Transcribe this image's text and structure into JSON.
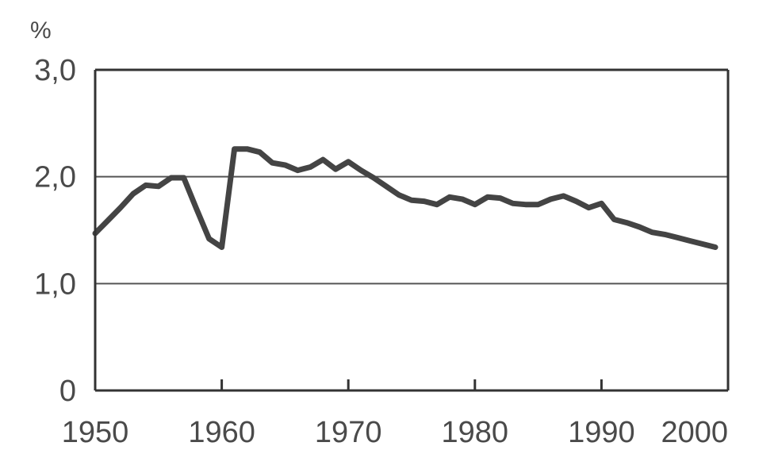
{
  "chart_data": {
    "type": "line",
    "title": "",
    "xlabel": "",
    "ylabel": "%",
    "xlim": [
      1950,
      2000
    ],
    "ylim": [
      0,
      3
    ],
    "grid": "horizontal at 1,0 and 2,0",
    "x_ticks": [
      "1950",
      "1960",
      "1970",
      "1980",
      "1990",
      "2000"
    ],
    "y_ticks": [
      "0",
      "1,0",
      "2,0",
      "3,0"
    ],
    "colors": {
      "line": "#444444",
      "frame": "#333333",
      "grid": "#555555",
      "text": "#4a4a4a"
    },
    "series": [
      {
        "x": [
          1950,
          1951,
          1952,
          1953,
          1954,
          1955,
          1956,
          1957,
          1958,
          1959,
          1960,
          1961,
          1962,
          1963,
          1964,
          1965,
          1966,
          1967,
          1968,
          1969,
          1970,
          1971,
          1972,
          1973,
          1974,
          1975,
          1976,
          1977,
          1978,
          1979,
          1980,
          1981,
          1982,
          1983,
          1984,
          1985,
          1986,
          1987,
          1988,
          1989,
          1990,
          1991,
          1992,
          1993,
          1994,
          1995,
          1996,
          1997,
          1998,
          1999
        ],
        "values": [
          1.47,
          1.59,
          1.71,
          1.84,
          1.92,
          1.91,
          1.99,
          1.99,
          1.7,
          1.42,
          1.34,
          2.26,
          2.26,
          2.23,
          2.13,
          2.11,
          2.06,
          2.09,
          2.16,
          2.07,
          2.14,
          2.06,
          1.99,
          1.91,
          1.83,
          1.78,
          1.77,
          1.74,
          1.81,
          1.79,
          1.74,
          1.81,
          1.8,
          1.75,
          1.74,
          1.74,
          1.79,
          1.82,
          1.77,
          1.71,
          1.75,
          1.6,
          1.57,
          1.53,
          1.48,
          1.46,
          1.43,
          1.4,
          1.37,
          1.34
        ]
      }
    ]
  }
}
